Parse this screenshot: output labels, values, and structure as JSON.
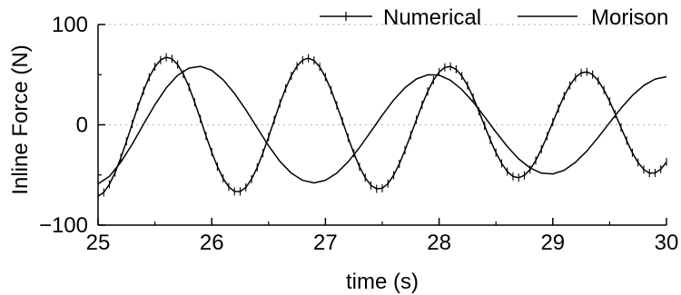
{
  "chart_data": {
    "type": "line",
    "xlabel": "time (s)",
    "ylabel": "Inline Force (N)",
    "xlim": [
      25,
      30
    ],
    "ylim": [
      -100,
      100
    ],
    "xticks": [
      25,
      26,
      27,
      28,
      29,
      30
    ],
    "yticks": [
      -100,
      0,
      100
    ],
    "x_tick_labels": [
      "25",
      "26",
      "27",
      "28",
      "29",
      "30"
    ],
    "y_tick_labels": [
      "−100",
      "0",
      "100"
    ],
    "grid": "dotted horizontal at y = 0 and y = 100",
    "legend_position": "top-right",
    "colors": {
      "line": "#000000",
      "grid": "#bbbbbb"
    },
    "series": [
      {
        "name": "Numerical",
        "marker": "vertical-tick",
        "x": [
          25.0,
          25.05,
          25.1,
          25.15,
          25.2,
          25.25,
          25.3,
          25.35,
          25.4,
          25.45,
          25.5,
          25.55,
          25.6,
          25.65,
          25.7,
          25.75,
          25.8,
          25.85,
          25.9,
          25.95,
          26.0,
          26.05,
          26.1,
          26.15,
          26.2,
          26.25,
          26.3,
          26.35,
          26.4,
          26.45,
          26.5,
          26.55,
          26.6,
          26.65,
          26.7,
          26.75,
          26.8,
          26.85,
          26.9,
          26.95,
          27.0,
          27.05,
          27.1,
          27.15,
          27.2,
          27.25,
          27.3,
          27.35,
          27.4,
          27.45,
          27.5,
          27.55,
          27.6,
          27.65,
          27.7,
          27.75,
          27.8,
          27.85,
          27.9,
          27.95,
          28.0,
          28.05,
          28.1,
          28.15,
          28.2,
          28.25,
          28.3,
          28.35,
          28.4,
          28.45,
          28.5,
          28.55,
          28.6,
          28.65,
          28.7,
          28.75,
          28.8,
          28.85,
          28.9,
          28.95,
          29.0,
          29.05,
          29.1,
          29.15,
          29.2,
          29.25,
          29.3,
          29.35,
          29.4,
          29.45,
          29.5,
          29.55,
          29.6,
          29.65,
          29.7,
          29.75,
          29.8,
          29.85,
          29.9,
          29.95,
          30.0
        ],
        "y": [
          -71.1,
          -67.4,
          -59.3,
          -47.6,
          -33.0,
          -16.5,
          0.9,
          18.0,
          33.9,
          47.4,
          57.8,
          64.6,
          67.3,
          65.8,
          60.1,
          50.5,
          37.7,
          22.5,
          5.9,
          -11.1,
          -27.2,
          -41.7,
          -53.5,
          -61.9,
          -66.4,
          -66.5,
          -62.4,
          -54.2,
          -42.5,
          -28.2,
          -12.0,
          4.9,
          21.3,
          36.3,
          48.9,
          58.5,
          64.5,
          66.4,
          64.1,
          57.7,
          47.6,
          34.6,
          19.5,
          3.4,
          -12.9,
          -28.3,
          -41.9,
          -52.8,
          -60.3,
          -63.8,
          -63.3,
          -58.6,
          -50.3,
          -39.0,
          -25.3,
          -10.3,
          5.0,
          19.9,
          33.3,
          44.4,
          52.6,
          57.3,
          58.2,
          55.3,
          48.8,
          39.3,
          27.2,
          13.5,
          -0.9,
          -15.0,
          -27.8,
          -38.5,
          -46.6,
          -51.5,
          -52.8,
          -50.4,
          -44.5,
          -35.7,
          -24.3,
          -11.3,
          2.6,
          16.2,
          28.8,
          39.3,
          47.2,
          51.9,
          52.8,
          50.1,
          43.9,
          34.8,
          23.4,
          10.6,
          -2.7,
          -15.8,
          -27.8,
          -37.6,
          -44.5,
          -48.1,
          -48.0,
          -44.3,
          -37.0
        ]
      },
      {
        "name": "Morison",
        "marker": "none",
        "x": [
          25.0,
          25.1,
          25.2,
          25.3,
          25.4,
          25.5,
          25.6,
          25.7,
          25.8,
          25.9,
          26.0,
          26.1,
          26.2,
          26.3,
          26.4,
          26.5,
          26.6,
          26.7,
          26.8,
          26.9,
          27.0,
          27.1,
          27.2,
          27.3,
          27.4,
          27.5,
          27.6,
          27.7,
          27.8,
          27.9,
          28.0,
          28.1,
          28.2,
          28.3,
          28.4,
          28.5,
          28.6,
          28.7,
          28.8,
          28.9,
          29.0,
          29.1,
          29.2,
          29.3,
          29.4,
          29.5,
          29.6,
          29.7,
          29.8,
          29.9,
          30.0
        ],
        "y": [
          -58.9,
          -51.4,
          -37.4,
          -19.4,
          0.6,
          20.0,
          36.8,
          49.3,
          56.6,
          58.3,
          54.3,
          45.0,
          31.3,
          14.8,
          -3.1,
          -20.9,
          -36.5,
          -48.2,
          -55.4,
          -57.9,
          -55.3,
          -48.1,
          -36.9,
          -22.6,
          -6.6,
          9.6,
          24.7,
          37.0,
          45.7,
          49.9,
          49.5,
          44.4,
          35.2,
          22.6,
          8.0,
          -7.2,
          -21.6,
          -33.9,
          -43.0,
          -48.2,
          -49.0,
          -45.3,
          -37.4,
          -26.1,
          -12.4,
          2.2,
          16.5,
          29.2,
          39.2,
          45.6,
          48.0
        ]
      }
    ]
  }
}
